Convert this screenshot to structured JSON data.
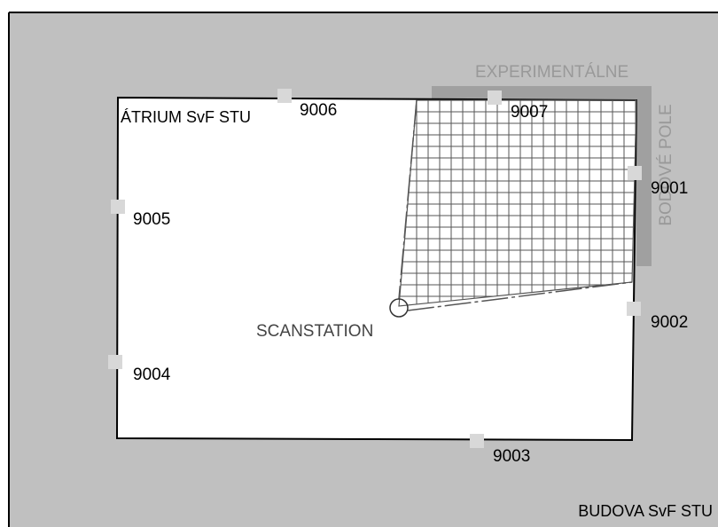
{
  "building": "BUDOVA SvF STU",
  "atrium": "ÁTRIUM SvF STU",
  "field": {
    "line1": "EXPERIMENTÁLNE",
    "line2": "BODOVÉ POLE"
  },
  "scanstation": "SCANSTATION",
  "points": [
    "9001",
    "9002",
    "9003",
    "9004",
    "9005",
    "9006",
    "9007"
  ]
}
